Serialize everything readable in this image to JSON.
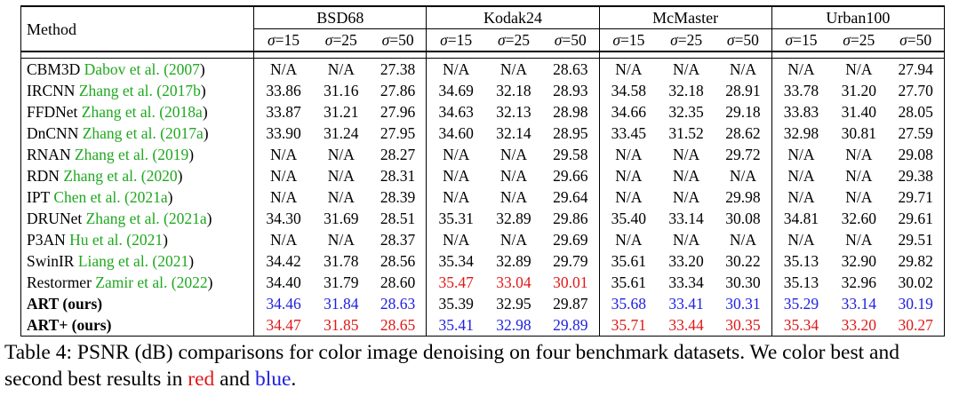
{
  "table": {
    "method_header": "Method",
    "datasets": [
      "BSD68",
      "Kodak24",
      "McMaster",
      "Urban100"
    ],
    "sigmas": [
      "σ=15",
      "σ=25",
      "σ=50"
    ],
    "rows": [
      {
        "name": "CBM3D",
        "cite_text": "Dabov et al. (",
        "cite_year": "2007",
        "cite_close": ")",
        "values": [
          "N/A",
          "N/A",
          "27.38",
          "N/A",
          "N/A",
          "28.63",
          "N/A",
          "N/A",
          "N/A",
          "N/A",
          "N/A",
          "27.94"
        ],
        "colors": [
          "",
          "",
          "",
          "",
          "",
          "",
          "",
          "",
          "",
          "",
          "",
          ""
        ]
      },
      {
        "name": "IRCNN",
        "cite_text": "Zhang et al. (",
        "cite_year": "2017b",
        "cite_close": ")",
        "values": [
          "33.86",
          "31.16",
          "27.86",
          "34.69",
          "32.18",
          "28.93",
          "34.58",
          "32.18",
          "28.91",
          "33.78",
          "31.20",
          "27.70"
        ],
        "colors": [
          "",
          "",
          "",
          "",
          "",
          "",
          "",
          "",
          "",
          "",
          "",
          ""
        ]
      },
      {
        "name": "FFDNet",
        "cite_text": "Zhang et al. (",
        "cite_year": "2018a",
        "cite_close": ")",
        "values": [
          "33.87",
          "31.21",
          "27.96",
          "34.63",
          "32.13",
          "28.98",
          "34.66",
          "32.35",
          "29.18",
          "33.83",
          "31.40",
          "28.05"
        ],
        "colors": [
          "",
          "",
          "",
          "",
          "",
          "",
          "",
          "",
          "",
          "",
          "",
          ""
        ]
      },
      {
        "name": "DnCNN",
        "cite_text": "Zhang et al. (",
        "cite_year": "2017a",
        "cite_close": ")",
        "values": [
          "33.90",
          "31.24",
          "27.95",
          "34.60",
          "32.14",
          "28.95",
          "33.45",
          "31.52",
          "28.62",
          "32.98",
          "30.81",
          "27.59"
        ],
        "colors": [
          "",
          "",
          "",
          "",
          "",
          "",
          "",
          "",
          "",
          "",
          "",
          ""
        ]
      },
      {
        "name": "RNAN",
        "cite_text": "Zhang et al. (",
        "cite_year": "2019",
        "cite_close": ")",
        "values": [
          "N/A",
          "N/A",
          "28.27",
          "N/A",
          "N/A",
          "29.58",
          "N/A",
          "N/A",
          "29.72",
          "N/A",
          "N/A",
          "29.08"
        ],
        "colors": [
          "",
          "",
          "",
          "",
          "",
          "",
          "",
          "",
          "",
          "",
          "",
          ""
        ]
      },
      {
        "name": "RDN",
        "cite_text": "Zhang et al. (",
        "cite_year": "2020",
        "cite_close": ")",
        "values": [
          "N/A",
          "N/A",
          "28.31",
          "N/A",
          "N/A",
          "29.66",
          "N/A",
          "N/A",
          "N/A",
          "N/A",
          "N/A",
          "29.38"
        ],
        "colors": [
          "",
          "",
          "",
          "",
          "",
          "",
          "",
          "",
          "",
          "",
          "",
          ""
        ]
      },
      {
        "name": "IPT",
        "cite_text": "Chen et al. (",
        "cite_year": "2021a",
        "cite_close": ")",
        "values": [
          "N/A",
          "N/A",
          "28.39",
          "N/A",
          "N/A",
          "29.64",
          "N/A",
          "N/A",
          "29.98",
          "N/A",
          "N/A",
          "29.71"
        ],
        "colors": [
          "",
          "",
          "",
          "",
          "",
          "",
          "",
          "",
          "",
          "",
          "",
          ""
        ]
      },
      {
        "name": "DRUNet",
        "cite_text": "Zhang et al. (",
        "cite_year": "2021a",
        "cite_close": ")",
        "values": [
          "34.30",
          "31.69",
          "28.51",
          "35.31",
          "32.89",
          "29.86",
          "35.40",
          "33.14",
          "30.08",
          "34.81",
          "32.60",
          "29.61"
        ],
        "colors": [
          "",
          "",
          "",
          "",
          "",
          "",
          "",
          "",
          "",
          "",
          "",
          ""
        ]
      },
      {
        "name": "P3AN",
        "cite_text": "Hu et al. (",
        "cite_year": "2021",
        "cite_close": ")",
        "values": [
          "N/A",
          "N/A",
          "28.37",
          "N/A",
          "N/A",
          "29.69",
          "N/A",
          "N/A",
          "N/A",
          "N/A",
          "N/A",
          "29.51"
        ],
        "colors": [
          "",
          "",
          "",
          "",
          "",
          "",
          "",
          "",
          "",
          "",
          "",
          ""
        ]
      },
      {
        "name": "SwinIR",
        "cite_text": "Liang et al. (",
        "cite_year": "2021",
        "cite_close": ")",
        "values": [
          "34.42",
          "31.78",
          "28.56",
          "35.34",
          "32.89",
          "29.79",
          "35.61",
          "33.20",
          "30.22",
          "35.13",
          "32.90",
          "29.82"
        ],
        "colors": [
          "",
          "",
          "",
          "",
          "",
          "",
          "",
          "",
          "",
          "",
          "",
          ""
        ]
      },
      {
        "name": "Restormer",
        "cite_text": "Zamir et al. (",
        "cite_year": "2022",
        "cite_close": ")",
        "values": [
          "34.40",
          "31.79",
          "28.60",
          "35.47",
          "33.04",
          "30.01",
          "35.61",
          "33.34",
          "30.30",
          "35.13",
          "32.96",
          "30.02"
        ],
        "colors": [
          "",
          "",
          "",
          "red",
          "red",
          "red",
          "",
          "",
          "",
          "",
          "",
          ""
        ]
      },
      {
        "name": "ART (ours)",
        "cite_text": "",
        "cite_year": "",
        "cite_close": "",
        "bold": true,
        "values": [
          "34.46",
          "31.84",
          "28.63",
          "35.39",
          "32.95",
          "29.87",
          "35.68",
          "33.41",
          "30.31",
          "35.29",
          "33.14",
          "30.19"
        ],
        "colors": [
          "blue",
          "blue",
          "blue",
          "",
          "",
          "",
          "blue",
          "blue",
          "blue",
          "blue",
          "blue",
          "blue"
        ]
      },
      {
        "name": "ART+ (ours)",
        "cite_text": "",
        "cite_year": "",
        "cite_close": "",
        "bold": true,
        "values": [
          "34.47",
          "31.85",
          "28.65",
          "35.41",
          "32.98",
          "29.89",
          "35.71",
          "33.44",
          "30.35",
          "35.34",
          "33.20",
          "30.27"
        ],
        "colors": [
          "red",
          "red",
          "red",
          "blue",
          "blue",
          "blue",
          "red",
          "red",
          "red",
          "red",
          "red",
          "red"
        ]
      }
    ]
  },
  "caption": {
    "part1": "Table 4: PSNR (dB) comparisons for color image denoising on four benchmark datasets. We color best and second best results in ",
    "red_word": "red",
    "part2": " and ",
    "blue_word": "blue",
    "part3": ".",
    "red_color": "#e01818",
    "blue_color": "#2020e0",
    "cite_color": "#1fa81f"
  }
}
